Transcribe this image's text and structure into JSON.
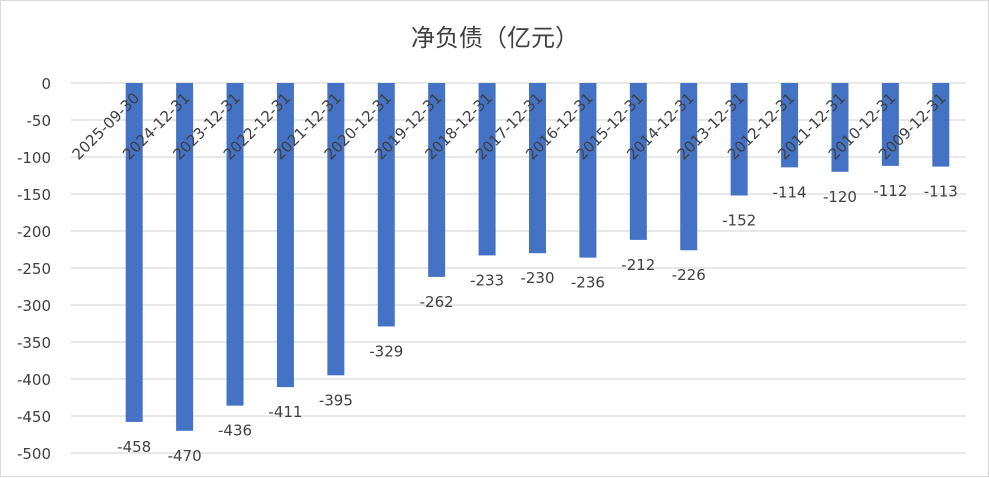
{
  "chart_data": {
    "type": "bar",
    "title": "净负债（亿元）",
    "categories": [
      "2025-09-30",
      "2024-12-31",
      "2023-12-31",
      "2022-12-31",
      "2021-12-31",
      "2020-12-31",
      "2019-12-31",
      "2018-12-31",
      "2017-12-31",
      "2016-12-31",
      "2015-12-31",
      "2014-12-31",
      "2013-12-31",
      "2012-12-31",
      "2011-12-31",
      "2010-12-31",
      "2009-12-31"
    ],
    "values": [
      -458,
      -470,
      -436,
      -411,
      -395,
      -329,
      -262,
      -233,
      -230,
      -236,
      -212,
      -226,
      -152,
      -114,
      -120,
      -112,
      -113
    ],
    "ylim": [
      -500,
      0
    ],
    "yticks": [
      0,
      -50,
      -100,
      -150,
      -200,
      -250,
      -300,
      -350,
      -400,
      -450,
      -500
    ],
    "grid": true,
    "legend": "none",
    "bar_color": "#4472C4",
    "xlabel": "",
    "ylabel": ""
  }
}
